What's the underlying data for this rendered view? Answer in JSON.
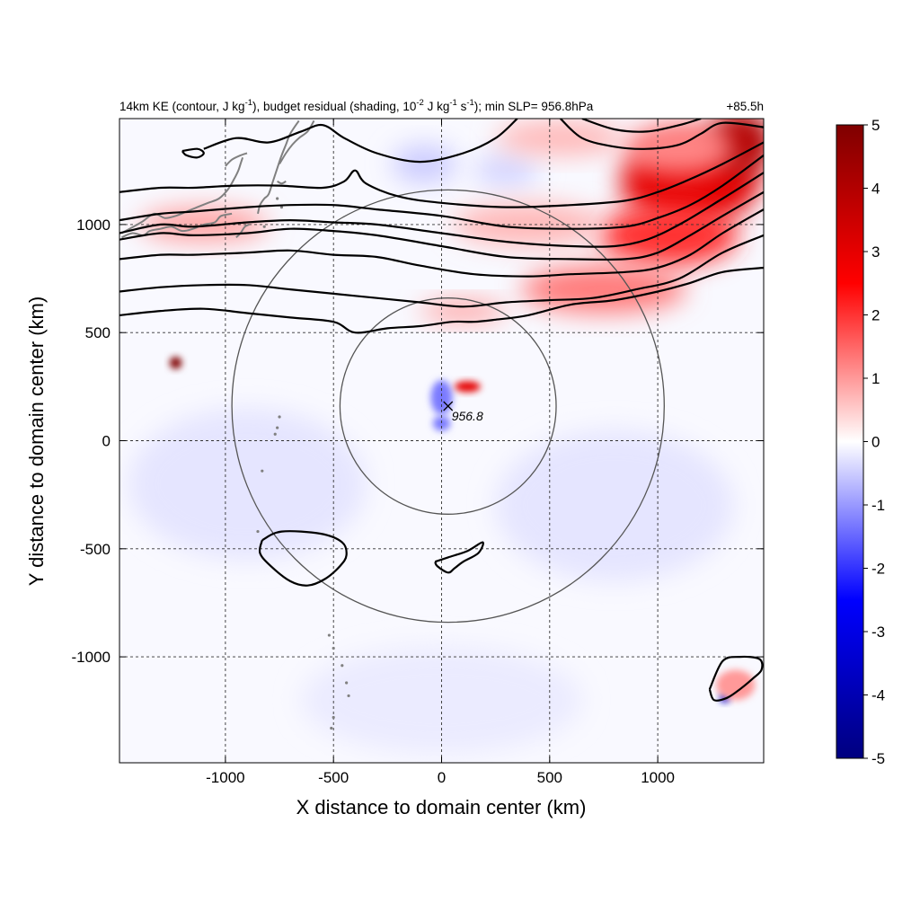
{
  "chart_data": {
    "type": "heatmap",
    "title_parts": {
      "p1": "14km KE (contour, J kg",
      "p1_sup": "-1",
      "p2": "), budget residual (shading, 10",
      "p2_sup": "-2",
      "p3": " J kg",
      "p3_sup": "-1",
      "p4": " s",
      "p4_sup": "-1",
      "p5": "); min SLP= 956.8hPa"
    },
    "time_label": "+85.5h",
    "xlabel": "X distance to domain center (km)",
    "ylabel": "Y distance to domain center (km)",
    "xlim": [
      -1490,
      1490
    ],
    "ylim": [
      -1490,
      1490
    ],
    "x_ticks": [
      -1000,
      -500,
      0,
      500,
      1000
    ],
    "y_ticks": [
      -1000,
      -500,
      0,
      500,
      1000
    ],
    "x_tick_labels": [
      "-1000",
      "-500",
      "0",
      "500",
      "1000"
    ],
    "y_tick_labels": [
      "-1000",
      "-500",
      "0",
      "500",
      "1000"
    ],
    "grid": "dashed",
    "colorbar": {
      "range": [
        -5,
        5
      ],
      "ticks": [
        5,
        4,
        3,
        2,
        1,
        0,
        -1,
        -2,
        -3,
        -4,
        -5
      ],
      "tick_labels": [
        "5",
        "4",
        "3",
        "2",
        "1",
        "0",
        "-1",
        "-2",
        "-3",
        "-4",
        "-5"
      ],
      "colors": [
        "#00007f",
        "#0000ff",
        "#ffffff",
        "#ff0000",
        "#7f0000"
      ],
      "placement": "right"
    },
    "storm_center": {
      "x": 30,
      "y": 160,
      "marker": "x",
      "label": "956.8"
    },
    "circles": [
      {
        "cx": 30,
        "cy": 160,
        "r": 500
      },
      {
        "cx": 30,
        "cy": 160,
        "r": 1000
      }
    ],
    "positive_blobs": [
      {
        "x": 1150,
        "y": 1200,
        "rx": 320,
        "ry": 200,
        "v": 3.0
      },
      {
        "x": 1380,
        "y": 1380,
        "rx": 150,
        "ry": 150,
        "v": 4.0
      },
      {
        "x": 1050,
        "y": 950,
        "rx": 320,
        "ry": 140,
        "v": 2.0
      },
      {
        "x": 750,
        "y": 700,
        "rx": 380,
        "ry": 110,
        "v": 1.3
      },
      {
        "x": 400,
        "y": 1000,
        "rx": 350,
        "ry": 100,
        "v": 0.7
      },
      {
        "x": -1100,
        "y": 1000,
        "rx": 300,
        "ry": 80,
        "v": 0.9
      },
      {
        "x": 100,
        "y": 600,
        "rx": 200,
        "ry": 50,
        "v": 0.9
      },
      {
        "x": 1100,
        "y": 1350,
        "rx": 250,
        "ry": 120,
        "v": 1.2
      },
      {
        "x": 120,
        "y": 250,
        "rx": 60,
        "ry": 25,
        "v": 3.0
      },
      {
        "x": -1230,
        "y": 360,
        "rx": 28,
        "ry": 28,
        "v": 6.0
      },
      {
        "x": 1360,
        "y": -1130,
        "rx": 90,
        "ry": 70,
        "v": 1.0
      },
      {
        "x": 550,
        "y": 1400,
        "rx": 300,
        "ry": 80,
        "v": 0.7
      }
    ],
    "negative_blobs": [
      {
        "x": -80,
        "y": 1280,
        "rx": 150,
        "ry": 90,
        "v": -0.5
      },
      {
        "x": 0,
        "y": 200,
        "rx": 50,
        "ry": 80,
        "v": -1.3
      },
      {
        "x": 0,
        "y": 80,
        "rx": 40,
        "ry": 35,
        "v": -1.3
      },
      {
        "x": 1310,
        "y": -1190,
        "rx": 22,
        "ry": 22,
        "v": -3.5
      },
      {
        "x": -900,
        "y": -200,
        "rx": 550,
        "ry": 350,
        "v": -0.25
      },
      {
        "x": 800,
        "y": -300,
        "rx": 550,
        "ry": 350,
        "v": -0.25
      },
      {
        "x": 0,
        "y": -1200,
        "rx": 650,
        "ry": 250,
        "v": -0.2
      },
      {
        "x": 300,
        "y": 1250,
        "rx": 150,
        "ry": 80,
        "v": -0.4
      }
    ],
    "ke_contours": [
      {
        "points": [
          [
            -1490,
            960
          ],
          [
            -1300,
            1000
          ],
          [
            -1150,
            990
          ],
          [
            -900,
            1010
          ],
          [
            -700,
            1020
          ],
          [
            -500,
            1010
          ],
          [
            -300,
            1000
          ],
          [
            0,
            960
          ],
          [
            300,
            920
          ],
          [
            600,
            900
          ],
          [
            800,
            900
          ],
          [
            950,
            930
          ],
          [
            1100,
            1000
          ],
          [
            1300,
            1120
          ],
          [
            1490,
            1240
          ]
        ]
      },
      {
        "points": [
          [
            -1490,
            930
          ],
          [
            -1300,
            960
          ],
          [
            -1150,
            950
          ],
          [
            -900,
            960
          ],
          [
            -700,
            980
          ],
          [
            -500,
            970
          ],
          [
            -300,
            950
          ],
          [
            0,
            900
          ],
          [
            300,
            850
          ],
          [
            600,
            840
          ],
          [
            850,
            840
          ],
          [
            1000,
            870
          ],
          [
            1150,
            950
          ],
          [
            1300,
            1040
          ],
          [
            1490,
            1150
          ]
        ]
      },
      {
        "points": [
          [
            -1490,
            840
          ],
          [
            -1300,
            860
          ],
          [
            -1150,
            860
          ],
          [
            -900,
            870
          ],
          [
            -700,
            880
          ],
          [
            -500,
            860
          ],
          [
            -300,
            850
          ],
          [
            -100,
            810
          ],
          [
            150,
            770
          ],
          [
            400,
            760
          ],
          [
            600,
            770
          ],
          [
            850,
            780
          ],
          [
            1000,
            800
          ],
          [
            1150,
            860
          ],
          [
            1300,
            960
          ],
          [
            1490,
            1070
          ]
        ]
      },
      {
        "points": [
          [
            -1490,
            690
          ],
          [
            -1300,
            710
          ],
          [
            -1100,
            720
          ],
          [
            -900,
            720
          ],
          [
            -700,
            700
          ],
          [
            -500,
            680
          ],
          [
            -300,
            660
          ],
          [
            -100,
            640
          ],
          [
            100,
            620
          ],
          [
            300,
            640
          ],
          [
            500,
            650
          ],
          [
            700,
            660
          ],
          [
            900,
            700
          ],
          [
            1100,
            750
          ],
          [
            1300,
            870
          ],
          [
            1490,
            950
          ]
        ]
      },
      {
        "points": [
          [
            -1490,
            580
          ],
          [
            -1300,
            600
          ],
          [
            -1100,
            610
          ],
          [
            -900,
            590
          ],
          [
            -700,
            570
          ],
          [
            -500,
            550
          ],
          [
            -400,
            500
          ],
          [
            -250,
            520
          ],
          [
            -100,
            530
          ],
          [
            50,
            550
          ],
          [
            150,
            550
          ],
          [
            250,
            560
          ],
          [
            400,
            580
          ],
          [
            600,
            630
          ],
          [
            800,
            650
          ],
          [
            1000,
            690
          ],
          [
            1150,
            730
          ],
          [
            1300,
            780
          ],
          [
            1490,
            800
          ]
        ]
      },
      {
        "points": [
          [
            -1490,
            1020
          ],
          [
            -1300,
            1050
          ],
          [
            -1150,
            1060
          ],
          [
            -900,
            1080
          ],
          [
            -700,
            1090
          ],
          [
            -500,
            1090
          ],
          [
            -300,
            1070
          ],
          [
            0,
            1040
          ],
          [
            300,
            990
          ],
          [
            600,
            980
          ],
          [
            850,
            990
          ],
          [
            1000,
            1030
          ],
          [
            1150,
            1090
          ],
          [
            1300,
            1180
          ],
          [
            1490,
            1320
          ]
        ]
      },
      {
        "points": [
          [
            -1490,
            1150
          ],
          [
            -1300,
            1170
          ],
          [
            -1150,
            1170
          ],
          [
            -950,
            1180
          ],
          [
            -750,
            1180
          ],
          [
            -550,
            1170
          ],
          [
            -450,
            1200
          ],
          [
            -400,
            1250
          ],
          [
            -350,
            1190
          ],
          [
            -200,
            1130
          ],
          [
            0,
            1100
          ],
          [
            300,
            1080
          ],
          [
            600,
            1090
          ],
          [
            850,
            1110
          ],
          [
            1000,
            1150
          ],
          [
            1150,
            1210
          ],
          [
            1300,
            1280
          ],
          [
            1490,
            1380
          ]
        ]
      },
      {
        "points": [
          [
            -1100,
            1350
          ],
          [
            -950,
            1400
          ],
          [
            -800,
            1380
          ],
          [
            -650,
            1430
          ],
          [
            -550,
            1460
          ],
          [
            -450,
            1400
          ],
          [
            -300,
            1330
          ],
          [
            -100,
            1290
          ],
          [
            100,
            1330
          ],
          [
            250,
            1400
          ],
          [
            350,
            1490
          ]
        ]
      },
      {
        "points": [
          [
            550,
            1490
          ],
          [
            650,
            1400
          ],
          [
            800,
            1360
          ],
          [
            950,
            1350
          ],
          [
            1100,
            1370
          ],
          [
            1200,
            1420
          ],
          [
            1300,
            1470
          ],
          [
            1490,
            1450
          ]
        ]
      },
      {
        "points": [
          [
            650,
            1490
          ],
          [
            800,
            1440
          ],
          [
            950,
            1430
          ],
          [
            1100,
            1460
          ],
          [
            1200,
            1490
          ]
        ]
      },
      {
        "points": [
          [
            -1200,
            1340
          ],
          [
            -1180,
            1320
          ],
          [
            -1130,
            1310
          ],
          [
            -1100,
            1330
          ],
          [
            -1130,
            1350
          ],
          [
            -1200,
            1340
          ]
        ]
      },
      {
        "points": [
          [
            -830,
            -460
          ],
          [
            -740,
            -420
          ],
          [
            -560,
            -430
          ],
          [
            -460,
            -470
          ],
          [
            -440,
            -530
          ],
          [
            -470,
            -580
          ],
          [
            -540,
            -640
          ],
          [
            -620,
            -670
          ],
          [
            -700,
            -650
          ],
          [
            -790,
            -580
          ],
          [
            -840,
            -520
          ],
          [
            -830,
            -460
          ]
        ]
      },
      {
        "points": [
          [
            -30,
            -560
          ],
          [
            30,
            -540
          ],
          [
            120,
            -510
          ],
          [
            190,
            -470
          ],
          [
            170,
            -520
          ],
          [
            100,
            -560
          ],
          [
            60,
            -590
          ],
          [
            30,
            -610
          ],
          [
            -20,
            -580
          ],
          [
            -30,
            -560
          ]
        ]
      },
      {
        "points": [
          [
            1240,
            -1150
          ],
          [
            1300,
            -1020
          ],
          [
            1380,
            -1000
          ],
          [
            1470,
            -1010
          ],
          [
            1480,
            -1060
          ],
          [
            1440,
            -1100
          ],
          [
            1380,
            -1150
          ],
          [
            1320,
            -1190
          ],
          [
            1260,
            -1200
          ],
          [
            1240,
            -1150
          ]
        ]
      }
    ],
    "coastlines": [
      {
        "points": [
          [
            -1480,
            960
          ],
          [
            -1390,
            1010
          ],
          [
            -1330,
            1050
          ],
          [
            -1280,
            1030
          ],
          [
            -1230,
            1040
          ],
          [
            -1180,
            1060
          ],
          [
            -1130,
            1080
          ],
          [
            -1080,
            1100
          ],
          [
            -1030,
            1120
          ],
          [
            -990,
            1160
          ],
          [
            -960,
            1210
          ],
          [
            -940,
            1250
          ],
          [
            -930,
            1280
          ],
          [
            -920,
            1310
          ]
        ]
      },
      {
        "points": [
          [
            -1000,
            1270
          ],
          [
            -970,
            1300
          ],
          [
            -930,
            1320
          ],
          [
            -900,
            1330
          ]
        ]
      },
      {
        "points": [
          [
            -850,
            1050
          ],
          [
            -840,
            1090
          ],
          [
            -820,
            1120
          ],
          [
            -800,
            1140
          ],
          [
            -780,
            1200
          ],
          [
            -760,
            1260
          ],
          [
            -740,
            1320
          ],
          [
            -720,
            1370
          ],
          [
            -700,
            1420
          ],
          [
            -660,
            1480
          ]
        ]
      },
      {
        "points": [
          [
            -1480,
            940
          ],
          [
            -1430,
            960
          ],
          [
            -1380,
            950
          ],
          [
            -1350,
            970
          ],
          [
            -1300,
            980
          ],
          [
            -1250,
            990
          ],
          [
            -1200,
            970
          ],
          [
            -1150,
            980
          ],
          [
            -1100,
            1000
          ],
          [
            -1050,
            1010
          ],
          [
            -1020,
            1040
          ],
          [
            -970,
            1050
          ]
        ]
      },
      {
        "points": [
          [
            -750,
            1280
          ],
          [
            -720,
            1330
          ],
          [
            -690,
            1370
          ],
          [
            -660,
            1400
          ],
          [
            -620,
            1430
          ],
          [
            -590,
            1480
          ]
        ]
      },
      {
        "points": [
          [
            -760,
            1200
          ],
          [
            -740,
            1190
          ],
          [
            -720,
            1200
          ]
        ]
      },
      {
        "points": [
          [
            -950,
            940
          ],
          [
            -930,
            960
          ],
          [
            -910,
            990
          ],
          [
            -890,
            1000
          ]
        ]
      }
    ],
    "island_dots": [
      [
        -750,
        110
      ],
      [
        -760,
        60
      ],
      [
        -770,
        30
      ],
      [
        -830,
        -140
      ],
      [
        -850,
        -420
      ],
      [
        -520,
        -900
      ],
      [
        -500,
        -960
      ],
      [
        -460,
        -1040
      ],
      [
        -440,
        -1120
      ],
      [
        -430,
        -1180
      ],
      [
        -500,
        -1280
      ],
      [
        -510,
        -1330
      ],
      [
        -760,
        1120
      ],
      [
        -740,
        1080
      ],
      [
        -820,
        990
      ]
    ]
  }
}
